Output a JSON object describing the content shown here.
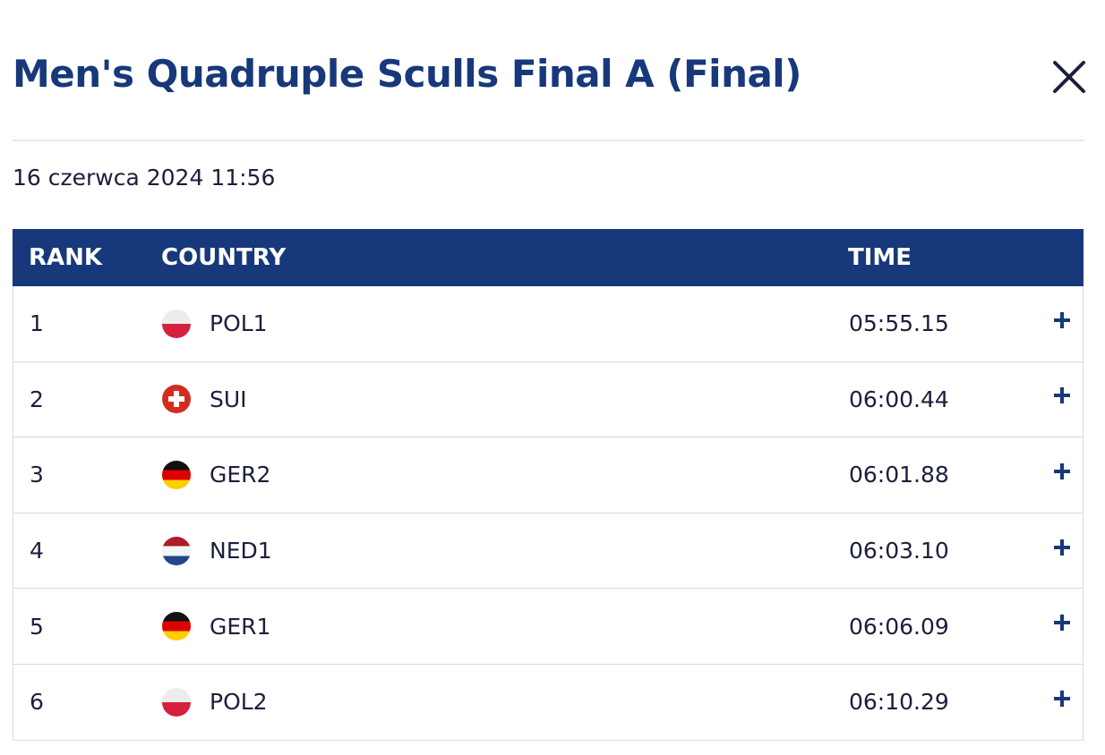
{
  "header": {
    "title": "Men's Quadruple Sculls Final A (Final)",
    "date": "16 czerwca 2024 11:56"
  },
  "table": {
    "columns": [
      "RANK",
      "COUNTRY",
      "TIME"
    ],
    "rows": [
      [
        1,
        "POL1",
        "05:55.15"
      ],
      [
        2,
        "SUI",
        "06:00.44"
      ],
      [
        3,
        "GER2",
        "06:01.88"
      ],
      [
        4,
        "NED1",
        "06:03.10"
      ],
      [
        5,
        "GER1",
        "06:06.09"
      ],
      [
        6,
        "POL2",
        "06:10.29"
      ]
    ]
  }
}
